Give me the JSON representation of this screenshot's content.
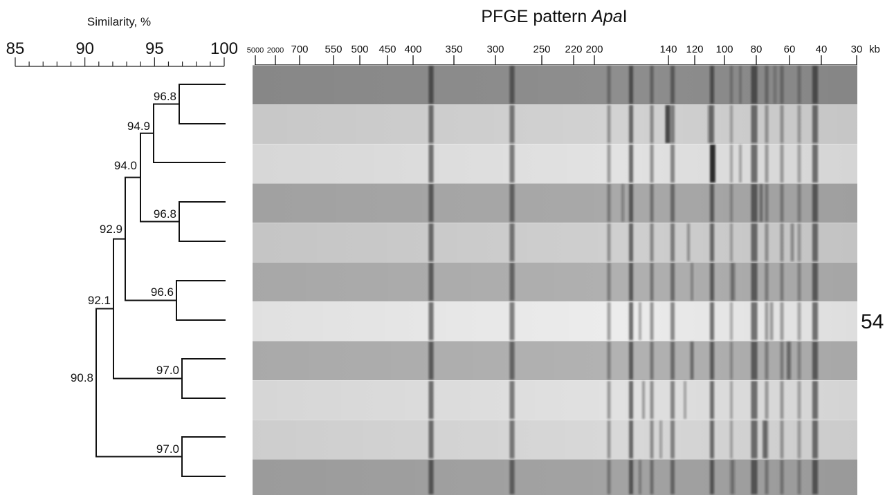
{
  "similarity": {
    "title": "Similarity, %",
    "scale_labels": [
      "85",
      "90",
      "95",
      "100"
    ],
    "scale_values": [
      85,
      90,
      95,
      100
    ]
  },
  "gel": {
    "title_prefix": "PFGE pattern ",
    "enzyme_italic": "Apa",
    "enzyme_suffix": "I",
    "unit": "kb",
    "marker_labels": [
      "5000",
      "2000",
      "700",
      "550",
      "500",
      "450",
      "400",
      "350",
      "300",
      "250",
      "220",
      "200",
      "140",
      "120",
      "100",
      "80",
      "60",
      "40",
      "30"
    ],
    "lane_count": 11,
    "lane_tones": [
      "#8e8e8e",
      "#d2d2d2",
      "#e2e2e2",
      "#a9a9a9",
      "#cfcfcf",
      "#b0b0b0",
      "#ececec",
      "#b2b2b2",
      "#e1e1e1",
      "#d8d8d8",
      "#a3a3a3"
    ]
  },
  "side_label": "54",
  "dendrogram": {
    "node_labels": [
      "96.8",
      "94.9",
      "94.0",
      "96.8",
      "92.9",
      "96.6",
      "92.1",
      "97.0",
      "90.8",
      "97.0"
    ],
    "node_values": [
      96.8,
      94.9,
      94.0,
      96.8,
      92.9,
      96.6,
      92.1,
      97.0,
      90.8,
      97.0
    ]
  }
}
